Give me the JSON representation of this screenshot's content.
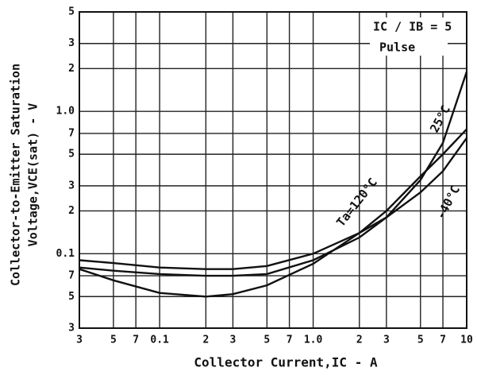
{
  "chart_data": {
    "type": "line",
    "x_label": "Collector Current,IC - A",
    "y_label_line1": "Collector-to-Emitter Saturation",
    "y_label_line2": "Voltage,VCE(sat) - V",
    "annotations": [
      "IC / IB = 5",
      "Pulse"
    ],
    "log_x": true,
    "log_y": true,
    "grid": true,
    "x": [
      0.03,
      0.05,
      0.1,
      0.2,
      0.3,
      0.5,
      1.0,
      2,
      3,
      5,
      7,
      10
    ],
    "series": [
      {
        "name": "Ta=120°C",
        "color": "#111111",
        "values": [
          0.078,
          0.065,
          0.053,
          0.05,
          0.052,
          0.06,
          0.085,
          0.14,
          0.2,
          0.35,
          0.5,
          0.75
        ]
      },
      {
        "name": "25°C",
        "color": "#111111",
        "values": [
          0.08,
          0.076,
          0.072,
          0.07,
          0.07,
          0.072,
          0.09,
          0.13,
          0.18,
          0.33,
          0.6,
          1.9
        ]
      },
      {
        "name": "-40°C",
        "color": "#111111",
        "values": [
          0.09,
          0.086,
          0.08,
          0.078,
          0.078,
          0.082,
          0.1,
          0.14,
          0.18,
          0.27,
          0.38,
          0.65
        ]
      }
    ],
    "xlim": [
      0.03,
      10
    ],
    "ylim": [
      0.03,
      5
    ],
    "xticks": [
      {
        "value": 0.03,
        "label": "3"
      },
      {
        "value": 0.05,
        "label": "5"
      },
      {
        "value": 0.07,
        "label": "7"
      },
      0.1,
      {
        "value": 0.2,
        "label": "2"
      },
      {
        "value": 0.3,
        "label": "3"
      },
      {
        "value": 0.5,
        "label": "5"
      },
      {
        "value": 0.7,
        "label": "7"
      },
      {
        "value": 1.0,
        "label": "1.0"
      },
      2,
      3,
      5,
      7,
      10
    ],
    "yticks": [
      {
        "value": 0.03,
        "label": "3"
      },
      {
        "value": 0.05,
        "label": "5"
      },
      {
        "value": 0.07,
        "label": "7"
      },
      0.1,
      {
        "value": 0.2,
        "label": "2"
      },
      {
        "value": 0.3,
        "label": "3"
      },
      {
        "value": 0.5,
        "label": "5"
      },
      {
        "value": 0.7,
        "label": "7"
      },
      {
        "value": 1.0,
        "label": "1.0"
      },
      2,
      3,
      5
    ]
  }
}
